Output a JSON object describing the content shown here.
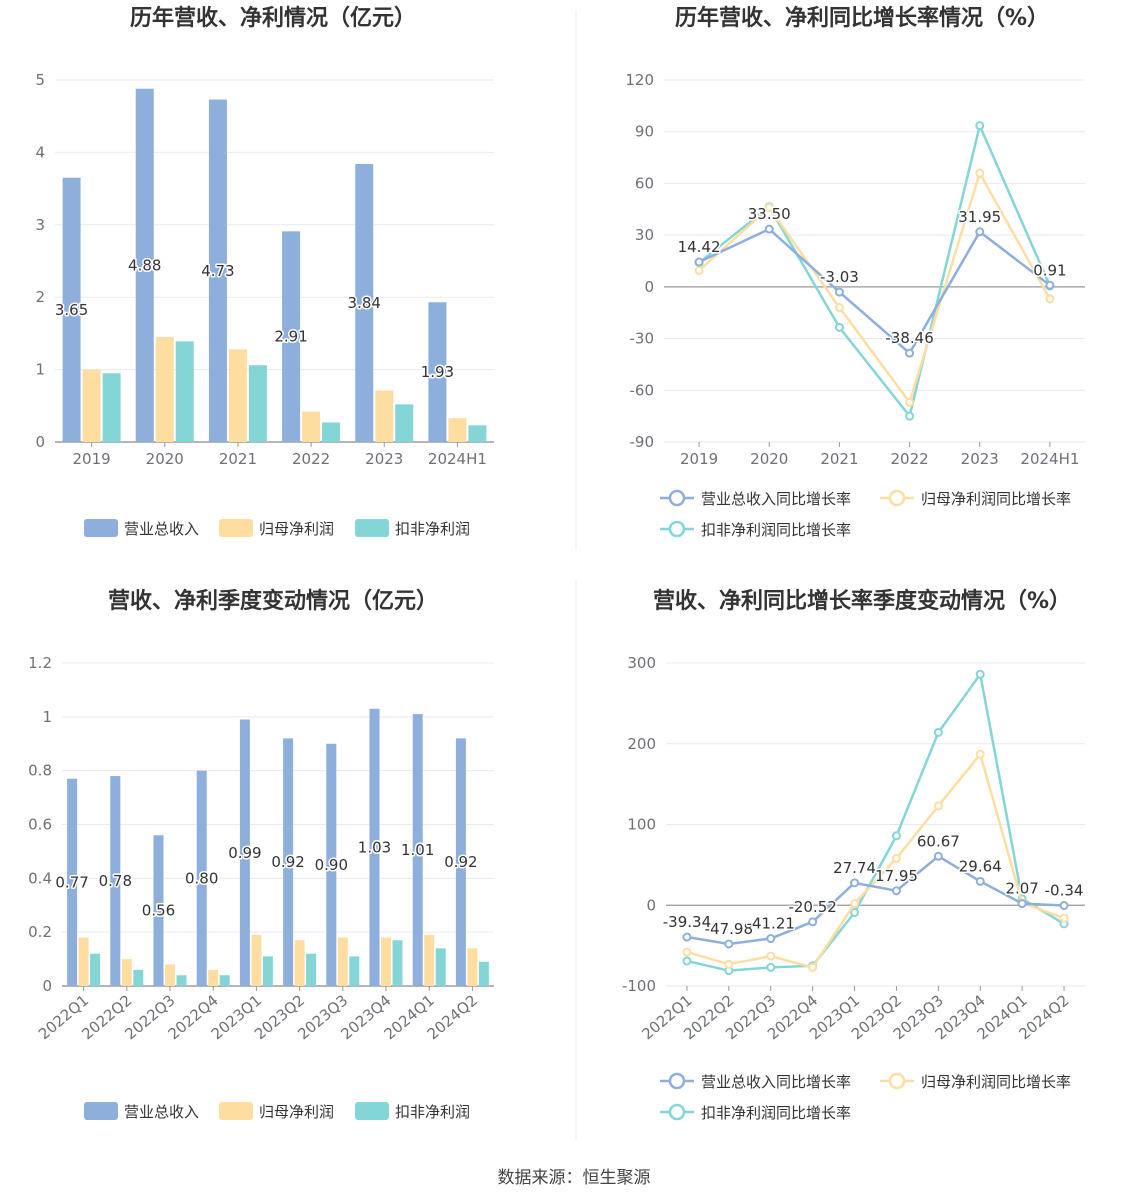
{
  "source_text": "数据来源：恒生聚源",
  "colors": {
    "revenue": "#8eaedc",
    "net_profit": "#fedda1",
    "deducted_profit": "#84d5d6"
  },
  "chart_data": [
    {
      "type": "bar",
      "title": "历年营收、净利情况（亿元）",
      "categories": [
        "2019",
        "2020",
        "2021",
        "2022",
        "2023",
        "2024H1"
      ],
      "series": [
        {
          "name": "营业总收入",
          "values": [
            3.65,
            4.88,
            4.73,
            2.91,
            3.84,
            1.93
          ],
          "labels": [
            "3.65",
            "4.88",
            "4.73",
            "2.91",
            "3.84",
            "1.93"
          ]
        },
        {
          "name": "归母净利润",
          "values": [
            1.0,
            1.45,
            1.28,
            0.42,
            0.71,
            0.33
          ]
        },
        {
          "name": "扣非净利润",
          "values": [
            0.95,
            1.39,
            1.06,
            0.27,
            0.52,
            0.23
          ]
        }
      ],
      "ylim": [
        0,
        5
      ],
      "yticks": [
        "0",
        "1",
        "2",
        "3",
        "4",
        "5"
      ],
      "legend": [
        "营业总收入",
        "归母净利润",
        "扣非净利润"
      ]
    },
    {
      "type": "line",
      "title": "历年营收、净利同比增长率情况（%）",
      "categories": [
        "2019",
        "2020",
        "2021",
        "2022",
        "2023",
        "2024H1"
      ],
      "series": [
        {
          "name": "营业总收入同比增长率",
          "values": [
            14.42,
            33.5,
            -3.03,
            -38.46,
            31.95,
            0.91
          ],
          "labels": [
            "14.42",
            "33.50",
            "-3.03",
            "-38.46",
            "31.95",
            "0.91"
          ]
        },
        {
          "name": "归母净利润同比增长率",
          "values": [
            9.5,
            46.0,
            -12.0,
            -67.0,
            66.0,
            -7.0
          ]
        },
        {
          "name": "扣非净利润同比增长率",
          "values": [
            14.0,
            46.5,
            -23.5,
            -75.0,
            93.5,
            0.5
          ]
        }
      ],
      "ylim": [
        -90,
        120
      ],
      "yticks": [
        "-90",
        "-60",
        "-30",
        "0",
        "30",
        "60",
        "90",
        "120"
      ],
      "legend": [
        "营业总收入同比增长率",
        "归母净利润同比增长率",
        "扣非净利润同比增长率"
      ]
    },
    {
      "type": "bar",
      "title": "营收、净利季度变动情况（亿元）",
      "categories": [
        "2022Q1",
        "2022Q2",
        "2022Q3",
        "2022Q4",
        "2023Q1",
        "2023Q2",
        "2023Q3",
        "2023Q4",
        "2024Q1",
        "2024Q2"
      ],
      "series": [
        {
          "name": "营业总收入",
          "values": [
            0.77,
            0.78,
            0.56,
            0.8,
            0.99,
            0.92,
            0.9,
            1.03,
            1.01,
            0.92
          ],
          "labels": [
            "0.77",
            "0.78",
            "0.56",
            "0.80",
            "0.99",
            "0.92",
            "0.90",
            "1.03",
            "1.01",
            "0.92"
          ]
        },
        {
          "name": "归母净利润",
          "values": [
            0.18,
            0.1,
            0.08,
            0.06,
            0.19,
            0.17,
            0.18,
            0.18,
            0.19,
            0.14
          ]
        },
        {
          "name": "扣非净利润",
          "values": [
            0.12,
            0.06,
            0.04,
            0.04,
            0.11,
            0.12,
            0.11,
            0.17,
            0.14,
            0.09
          ]
        }
      ],
      "ylim": [
        0,
        1.2
      ],
      "yticks": [
        "0",
        "0.2",
        "0.4",
        "0.6",
        "0.8",
        "1",
        "1.2"
      ],
      "legend": [
        "营业总收入",
        "归母净利润",
        "扣非净利润"
      ]
    },
    {
      "type": "line",
      "title": "营收、净利同比增长率季度变动情况（%）",
      "categories": [
        "2022Q1",
        "2022Q2",
        "2022Q3",
        "2022Q4",
        "2023Q1",
        "2023Q2",
        "2023Q3",
        "2023Q4",
        "2024Q1",
        "2024Q2"
      ],
      "series": [
        {
          "name": "营业总收入同比增长率",
          "values": [
            -39.34,
            -47.98,
            -41.21,
            -20.52,
            27.74,
            17.95,
            60.67,
            29.64,
            2.07,
            -0.34
          ],
          "labels": [
            "-39.34",
            "-47.98",
            "-41.21",
            "-20.52",
            "27.74",
            "17.95",
            "60.67",
            "29.64",
            "2.07",
            "-0.34"
          ]
        },
        {
          "name": "归母净利润同比增长率",
          "values": [
            -58.0,
            -73.0,
            -63.0,
            -77.0,
            2.0,
            58.0,
            123.0,
            187.0,
            3.0,
            -16.0
          ]
        },
        {
          "name": "扣非净利润同比增长率",
          "values": [
            -69.0,
            -81.0,
            -77.0,
            -75.0,
            -9.0,
            86.0,
            214.0,
            286.0,
            8.0,
            -23.0
          ]
        }
      ],
      "ylim": [
        -100,
        300
      ],
      "yticks": [
        "-100",
        "0",
        "100",
        "200",
        "300"
      ],
      "legend": [
        "营业总收入同比增长率",
        "归母净利润同比增长率",
        "扣非净利润同比增长率"
      ]
    }
  ]
}
